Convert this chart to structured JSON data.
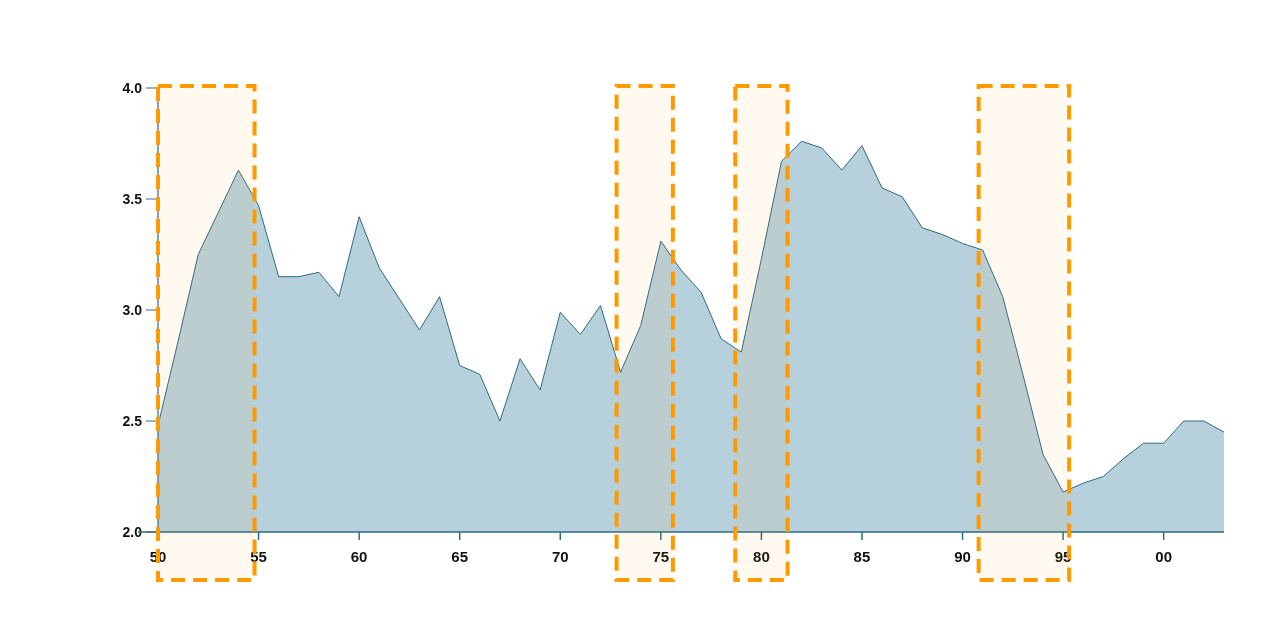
{
  "chart_data": {
    "type": "area",
    "x": [
      1950,
      1951,
      1952,
      1953,
      1954,
      1955,
      1956,
      1957,
      1958,
      1959,
      1960,
      1961,
      1962,
      1963,
      1964,
      1965,
      1966,
      1967,
      1968,
      1969,
      1970,
      1971,
      1972,
      1973,
      1974,
      1975,
      1976,
      1977,
      1978,
      1979,
      1980,
      1981,
      1982,
      1983,
      1984,
      1985,
      1986,
      1987,
      1988,
      1989,
      1990,
      1991,
      1992,
      1993,
      1994,
      1995,
      1996,
      1997,
      1998,
      1999,
      2000,
      2001,
      2002,
      2003
    ],
    "series": [
      {
        "color": "#2e6a85",
        "values": [
          2.48,
          2.86,
          3.25,
          3.44,
          3.63,
          3.47,
          3.15,
          3.15,
          3.17,
          3.06,
          3.42,
          3.19,
          3.05,
          2.91,
          3.06,
          2.75,
          2.71,
          2.5,
          2.78,
          2.64,
          2.99,
          2.89,
          3.02,
          2.72,
          2.93,
          3.31,
          3.18,
          3.08,
          2.87,
          2.81,
          3.23,
          3.67,
          3.76,
          3.73,
          3.63,
          3.74,
          3.55,
          3.51,
          3.37,
          3.34,
          3.3,
          3.27,
          3.06,
          2.71,
          2.35,
          2.18,
          2.22,
          2.25,
          2.33,
          2.4,
          2.4,
          2.5,
          2.5,
          2.45
        ]
      }
    ],
    "xlim": [
      1950,
      2003
    ],
    "xticks": [
      {
        "value": 1950,
        "label": "50"
      },
      {
        "value": 1955,
        "label": "55"
      },
      {
        "value": 1960,
        "label": "60"
      },
      {
        "value": 1965,
        "label": "65"
      },
      {
        "value": 1970,
        "label": "70"
      },
      {
        "value": 1975,
        "label": "75"
      },
      {
        "value": 1980,
        "label": "80"
      },
      {
        "value": 1985,
        "label": "85"
      },
      {
        "value": 1990,
        "label": "90"
      },
      {
        "value": 1995,
        "label": "95"
      },
      {
        "value": 2000,
        "label": "00"
      }
    ],
    "ylim": [
      2,
      4
    ],
    "yticks": [
      {
        "value": 2,
        "label": "2.0"
      },
      {
        "value": 2.5,
        "label": "2.5"
      },
      {
        "value": 3,
        "label": "3.0"
      },
      {
        "value": 3.5,
        "label": "3.5"
      },
      {
        "value": 4,
        "label": "4.0"
      }
    ],
    "bands": [
      {
        "axis": "x",
        "from": 1950,
        "to": 1954.8,
        "color": "#ff9900"
      },
      {
        "axis": "x",
        "from": 1972.8,
        "to": 1975.6,
        "color": "#ff9900"
      },
      {
        "axis": "x",
        "from": 1978.7,
        "to": 1981.3,
        "color": "#ff9900"
      },
      {
        "axis": "x",
        "from": 1990.8,
        "to": 1995.3,
        "color": "#ff9900"
      }
    ]
  }
}
